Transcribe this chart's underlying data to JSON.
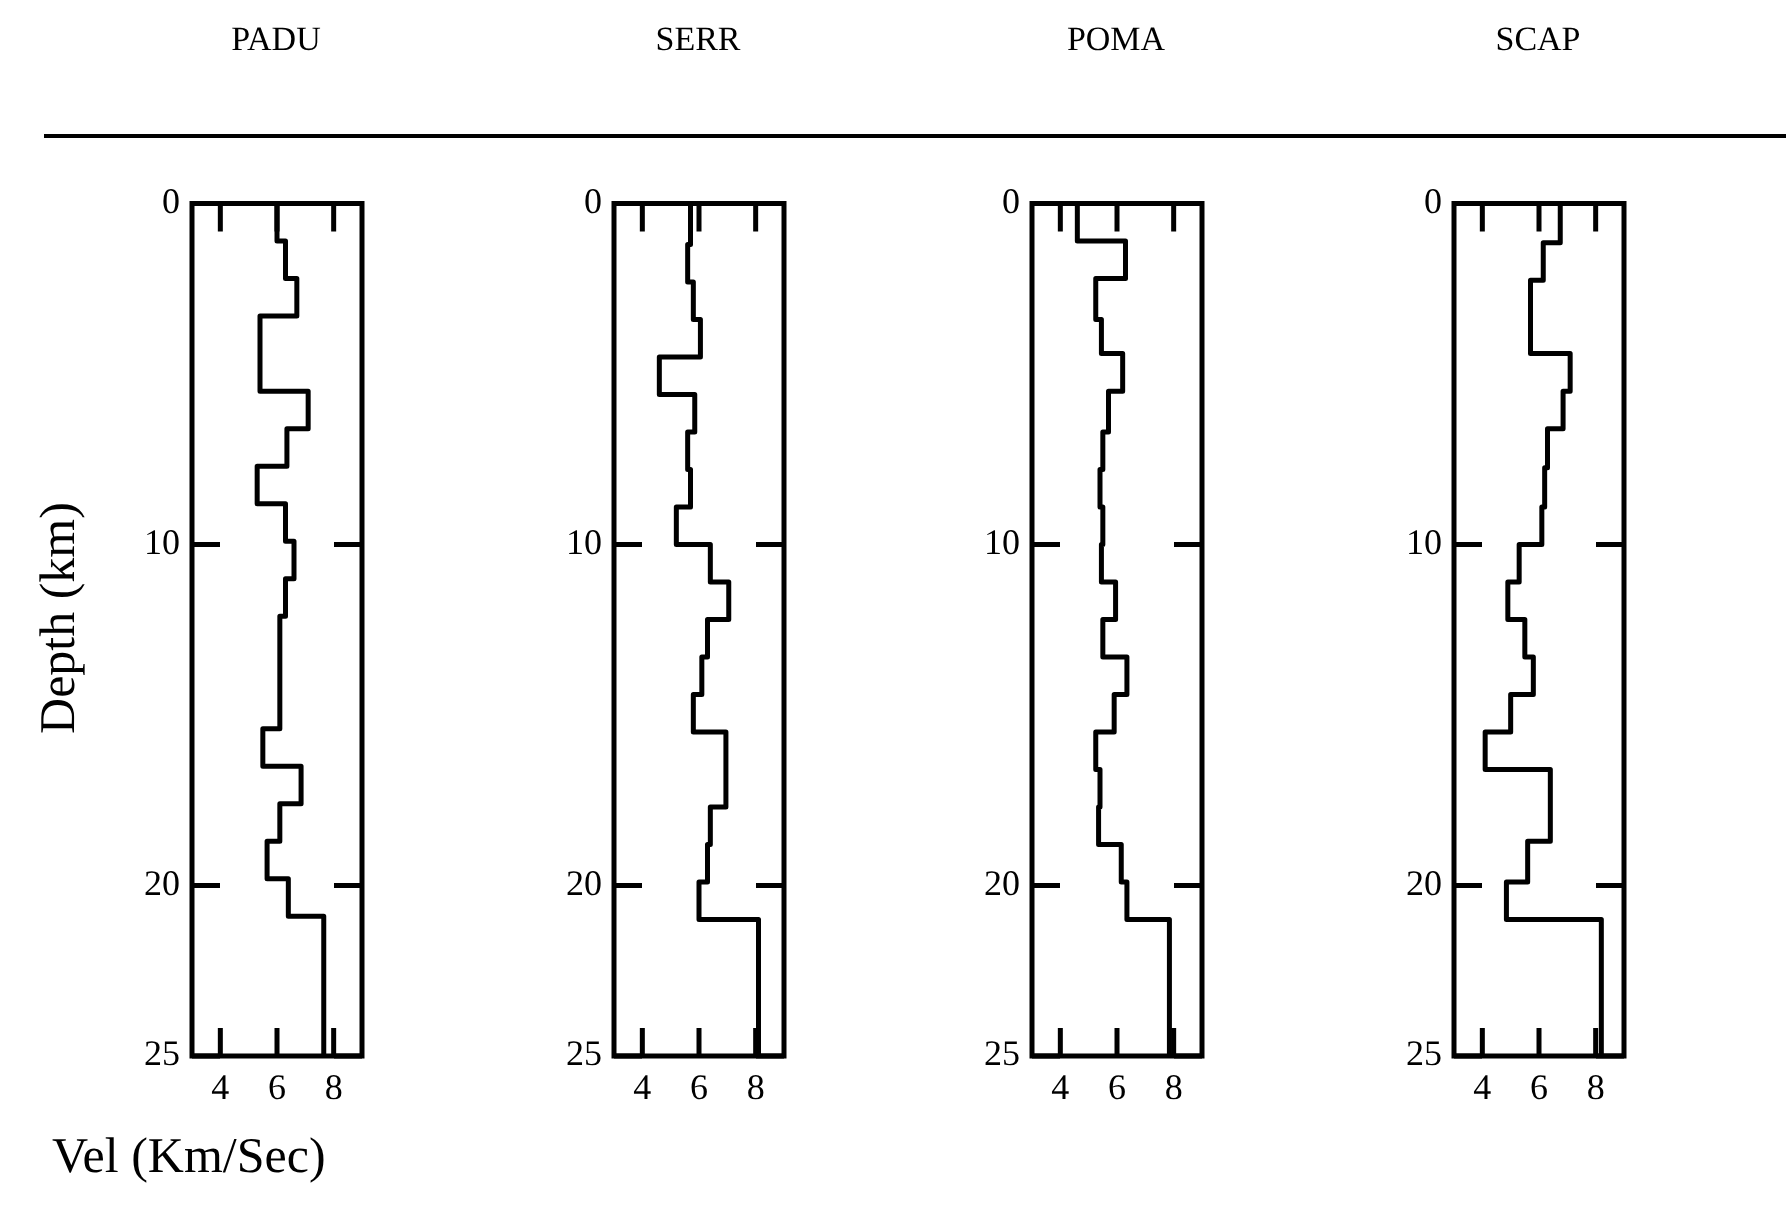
{
  "chart_data": [
    {
      "type": "line",
      "title": "PADU",
      "xlabel": "Vel (Km/Sec)",
      "ylabel": "Depth (km)",
      "marker": "none",
      "xlim": [
        3,
        9
      ],
      "ylim": [
        25,
        0
      ],
      "xticks": [
        4,
        6,
        8
      ],
      "yticks": [
        0,
        10,
        20,
        25
      ],
      "series": [
        {
          "color": "#000000",
          "x": [
            6.0,
            6.0,
            6.3,
            6.3,
            6.7,
            6.7,
            5.4,
            5.4,
            7.1,
            7.1,
            6.35,
            6.35,
            5.3,
            5.3,
            6.3,
            6.3,
            6.6,
            6.6,
            6.3,
            6.3,
            6.1,
            6.1,
            5.5,
            5.5,
            6.85,
            6.85,
            6.1,
            6.1,
            5.65,
            5.65,
            6.4,
            6.4,
            7.65,
            7.65
          ],
          "values": [
            0,
            1.1,
            1.1,
            2.2,
            2.2,
            3.3,
            3.3,
            5.5,
            5.5,
            6.6,
            6.6,
            7.7,
            7.7,
            8.8,
            8.8,
            9.9,
            9.9,
            11.0,
            11.0,
            12.1,
            12.1,
            15.4,
            15.4,
            16.5,
            16.5,
            17.6,
            17.6,
            18.7,
            18.7,
            19.8,
            19.8,
            20.9,
            20.9,
            25
          ]
        }
      ]
    },
    {
      "type": "line",
      "title": "SERR",
      "marker": "none",
      "xlim": [
        3,
        9
      ],
      "ylim": [
        25,
        0
      ],
      "xticks": [
        4,
        6,
        8
      ],
      "yticks": [
        0,
        10,
        20,
        25
      ],
      "series": [
        {
          "color": "#000000",
          "x": [
            5.7,
            5.7,
            5.6,
            5.6,
            5.8,
            5.8,
            6.05,
            6.05,
            4.6,
            4.6,
            5.85,
            5.85,
            5.6,
            5.6,
            5.7,
            5.7,
            5.2,
            5.2,
            6.4,
            6.4,
            7.05,
            7.05,
            6.3,
            6.3,
            6.1,
            6.1,
            5.8,
            5.8,
            6.95,
            6.95,
            6.4,
            6.4,
            6.3,
            6.3,
            6.0,
            6.0,
            8.1,
            8.1
          ],
          "values": [
            0,
            1.2,
            1.2,
            2.3,
            2.3,
            3.4,
            3.4,
            4.5,
            4.5,
            5.6,
            5.6,
            6.7,
            6.7,
            7.8,
            7.8,
            8.9,
            8.9,
            10.0,
            10.0,
            11.1,
            11.1,
            12.2,
            12.2,
            13.3,
            13.3,
            14.4,
            14.4,
            15.5,
            15.5,
            17.7,
            17.7,
            18.8,
            18.8,
            19.9,
            19.9,
            21.0,
            21.0,
            25
          ]
        }
      ]
    },
    {
      "type": "line",
      "title": "POMA",
      "marker": "none",
      "xlim": [
        3,
        9
      ],
      "ylim": [
        25,
        0
      ],
      "xticks": [
        4,
        6,
        8
      ],
      "yticks": [
        0,
        10,
        20,
        25
      ],
      "series": [
        {
          "color": "#000000",
          "x": [
            4.6,
            4.6,
            6.3,
            6.3,
            5.25,
            5.25,
            5.45,
            5.45,
            6.2,
            6.2,
            5.7,
            5.7,
            5.5,
            5.5,
            5.4,
            5.4,
            5.5,
            5.5,
            5.45,
            5.45,
            5.95,
            5.95,
            5.5,
            5.5,
            6.35,
            6.35,
            5.9,
            5.9,
            5.25,
            5.25,
            5.4,
            5.4,
            5.35,
            5.35,
            6.15,
            6.15,
            6.35,
            6.35,
            7.85,
            7.85
          ],
          "values": [
            0,
            1.1,
            1.1,
            2.2,
            2.2,
            3.4,
            3.4,
            4.4,
            4.4,
            5.5,
            5.5,
            6.7,
            6.7,
            7.8,
            7.8,
            8.9,
            8.9,
            10.0,
            10.0,
            11.1,
            11.1,
            12.2,
            12.2,
            13.3,
            13.3,
            14.4,
            14.4,
            15.5,
            15.5,
            16.6,
            16.6,
            17.7,
            17.7,
            18.8,
            18.8,
            19.9,
            19.9,
            21.0,
            21.0,
            25
          ]
        }
      ]
    },
    {
      "type": "line",
      "title": "SCAP",
      "marker": "none",
      "xlim": [
        3,
        9
      ],
      "ylim": [
        25,
        0
      ],
      "xticks": [
        4,
        6,
        8
      ],
      "yticks": [
        0,
        10,
        20,
        25
      ],
      "series": [
        {
          "color": "#000000",
          "x": [
            6.75,
            6.75,
            6.15,
            6.15,
            5.7,
            5.7,
            7.1,
            7.1,
            6.85,
            6.85,
            6.3,
            6.3,
            6.2,
            6.2,
            6.1,
            6.1,
            5.3,
            5.3,
            4.9,
            4.9,
            5.5,
            5.5,
            5.8,
            5.8,
            5.0,
            5.0,
            4.1,
            4.1,
            6.4,
            6.4,
            5.6,
            5.6,
            4.85,
            4.85,
            8.2,
            8.2
          ],
          "values": [
            0,
            1.15,
            1.15,
            2.25,
            2.25,
            4.4,
            4.4,
            5.5,
            5.5,
            6.6,
            6.6,
            7.75,
            7.75,
            8.9,
            8.9,
            10.0,
            10.0,
            11.1,
            11.1,
            12.2,
            12.2,
            13.3,
            13.3,
            14.4,
            14.4,
            15.5,
            15.5,
            16.6,
            16.6,
            18.7,
            18.7,
            19.9,
            19.9,
            21.0,
            21.0,
            25
          ]
        }
      ]
    }
  ]
}
